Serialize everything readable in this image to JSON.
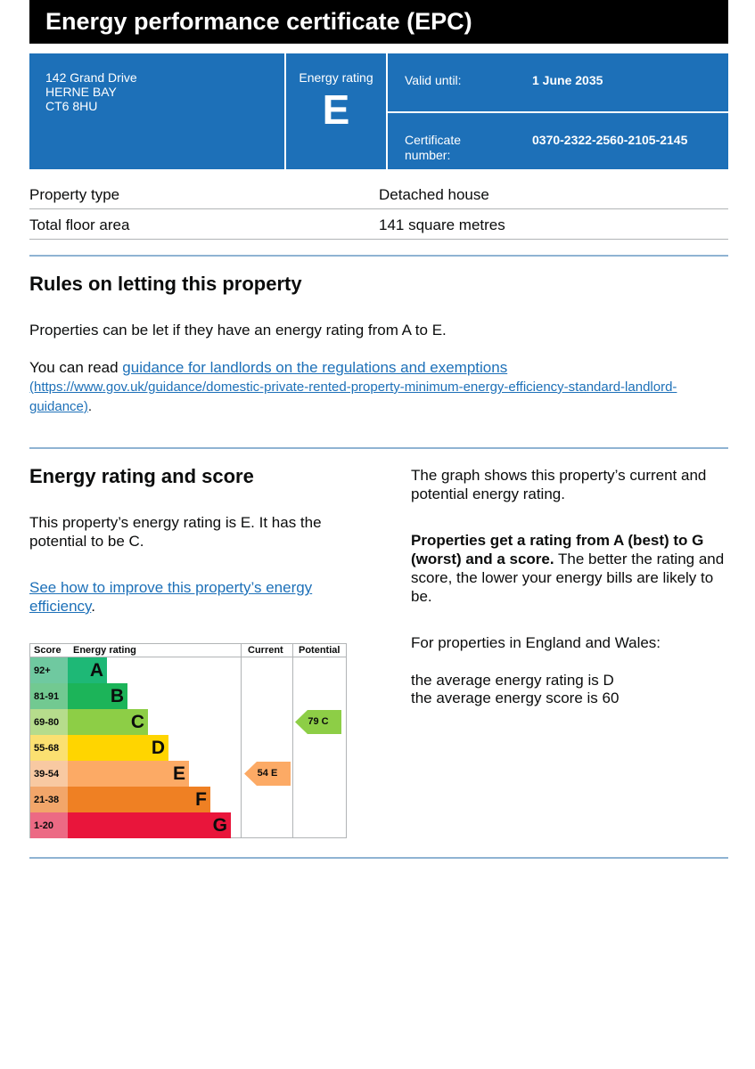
{
  "title": "Energy performance certificate (EPC)",
  "address": [
    "142 Grand Drive",
    "HERNE BAY",
    "CT6 8HU"
  ],
  "energy_rating": {
    "label": "Energy rating",
    "value": "E"
  },
  "valid_until": {
    "label": "Valid until:",
    "value": "1 June 2035"
  },
  "certificate": {
    "label1": "Certificate",
    "label2": "number:",
    "value": "0370-2322-2560-2105-2145"
  },
  "property": [
    {
      "label": "Property type",
      "value": "Detached house"
    },
    {
      "label": "Total floor area",
      "value": "141 square metres"
    }
  ],
  "letting": {
    "heading": "Rules on letting this property",
    "p1": "Properties can be let if they have an energy rating from A to E.",
    "p2_prefix": "You can read ",
    "link": "guidance for landlords on the regulations and exemptions",
    "url1": "(https://www.gov.uk/guidance/domestic-private-rented-property-minimum-energy-efficiency-standard-landlord-",
    "url2": "guidance)",
    "url_suffix": "."
  },
  "score": {
    "heading": "Energy rating and score",
    "p1": "This property’s energy rating is E. It has the potential to be C.",
    "link": "See how to improve this property’s energy efficiency",
    "link_suffix": ".",
    "r1": "The graph shows this property’s current and potential energy rating.",
    "r2_bold": "Properties get a rating from A (best) to G (worst) and a score.",
    "r2": " The better the rating and score, the lower your energy bills are likely to be.",
    "r3": "For properties in England and Wales:",
    "r4": "the average energy rating is D",
    "r5": "the average energy score is 60"
  },
  "chart_data": {
    "type": "table",
    "headers": [
      "Score",
      "Energy rating",
      "Current",
      "Potential"
    ],
    "bands": [
      {
        "score": "92+",
        "letter": "A",
        "color": "#1eb876",
        "light": "#6fc9a0"
      },
      {
        "score": "81-91",
        "letter": "B",
        "color": "#1cb459",
        "light": "#72c991"
      },
      {
        "score": "69-80",
        "letter": "C",
        "color": "#8dce46",
        "light": "#b6dc8c"
      },
      {
        "score": "55-68",
        "letter": "D",
        "color": "#ffd500",
        "light": "#fbe071"
      },
      {
        "score": "39-54",
        "letter": "E",
        "color": "#fcaa65",
        "light": "#f8c9a2"
      },
      {
        "score": "21-38",
        "letter": "F",
        "color": "#ef8023",
        "light": "#f2a66a"
      },
      {
        "score": "1-20",
        "letter": "G",
        "color": "#e9153b",
        "light": "#ec6a84"
      }
    ],
    "current": {
      "score": 54,
      "letter": "E",
      "label": "54  E"
    },
    "potential": {
      "score": 79,
      "letter": "C",
      "label": "79  C"
    }
  }
}
